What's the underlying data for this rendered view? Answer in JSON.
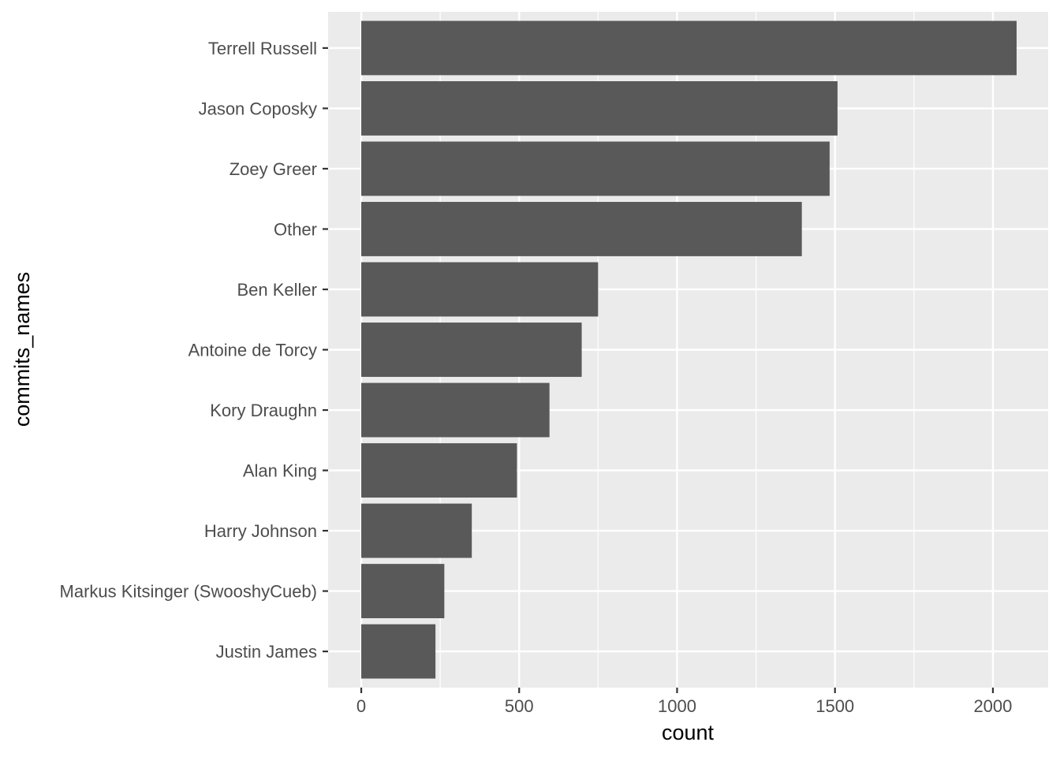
{
  "chart_data": {
    "type": "bar",
    "orientation": "horizontal",
    "categories": [
      "Justin James",
      "Markus Kitsinger (SwooshyCueb)",
      "Harry Johnson",
      "Alan King",
      "Kory Draughn",
      "Antoine de Torcy",
      "Ben Keller",
      "Other",
      "Zoey Greer",
      "Jason Coposky",
      "Terrell Russell"
    ],
    "values": [
      235,
      263,
      350,
      493,
      596,
      698,
      750,
      1395,
      1483,
      1508,
      2075
    ],
    "xlabel": "count",
    "ylabel": "commits_names",
    "xlim": [
      -105,
      2175
    ],
    "xticks": [
      0,
      500,
      1000,
      1500,
      2000
    ],
    "xtick_labels": [
      "0",
      "500",
      "1000",
      "1500",
      "2000"
    ],
    "grid": true,
    "legend": "none",
    "colors": {
      "bar": "#595959",
      "panel": "#ebebeb",
      "grid": "#ffffff",
      "tick_text": "#4d4d4d",
      "tick_mark": "#333333"
    }
  }
}
